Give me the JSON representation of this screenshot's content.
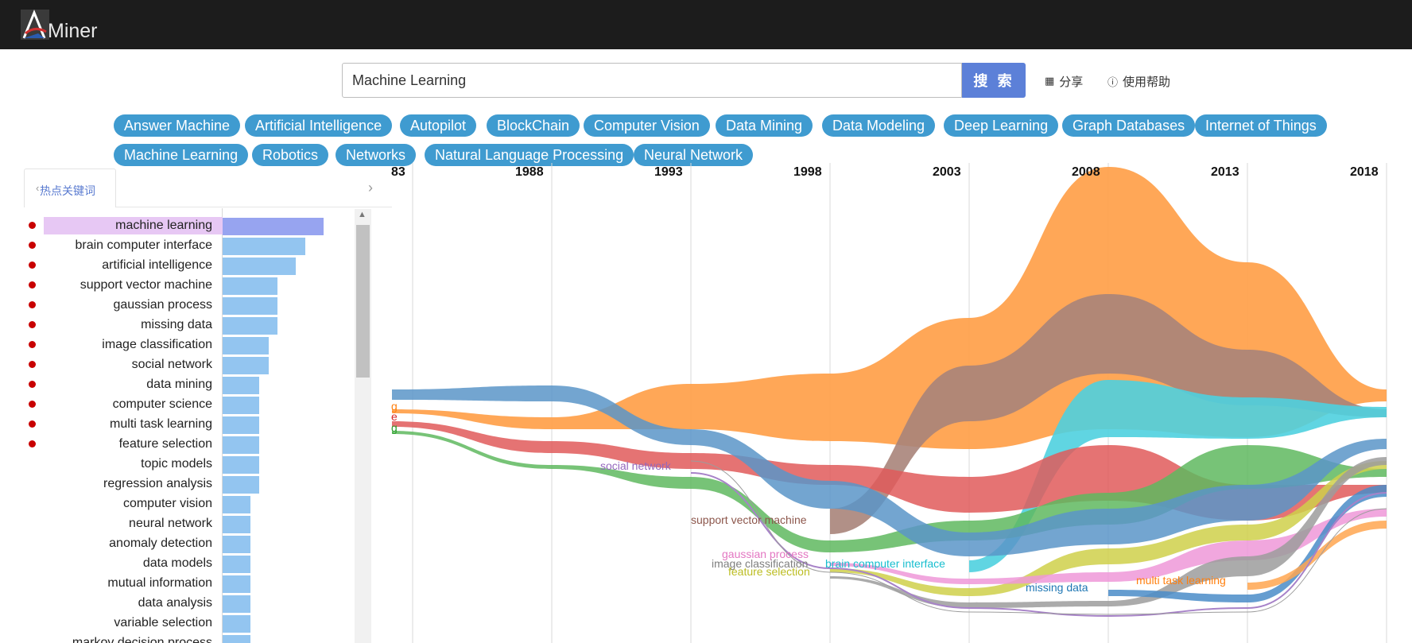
{
  "app": {
    "logo_text": "Miner",
    "logo_mark": "A"
  },
  "search": {
    "value": "Machine Learning",
    "button_label": "搜 索"
  },
  "header_links": {
    "share": "分享",
    "help": "使用帮助"
  },
  "tags": [
    "Answer Machine",
    "Artificial Intelligence",
    "Autopilot",
    "BlockChain",
    "Computer Vision",
    "Data Mining",
    "Data Modeling",
    "Deep Learning",
    "Graph Databases",
    "Internet of Things",
    "Machine Learning",
    "Robotics",
    "Networks",
    "Natural Language Processing",
    "Neural Network"
  ],
  "panel": {
    "tab_label": "热点关键词"
  },
  "keywords": [
    {
      "label": "machine learning",
      "value": 11,
      "hot": true,
      "selected": true
    },
    {
      "label": "brain computer interface",
      "value": 9,
      "hot": true
    },
    {
      "label": "artificial intelligence",
      "value": 8,
      "hot": true
    },
    {
      "label": "support vector machine",
      "value": 6,
      "hot": true
    },
    {
      "label": "gaussian process",
      "value": 6,
      "hot": true
    },
    {
      "label": "missing data",
      "value": 6,
      "hot": true
    },
    {
      "label": "image classification",
      "value": 5,
      "hot": true
    },
    {
      "label": "social network",
      "value": 5,
      "hot": true
    },
    {
      "label": "data mining",
      "value": 4,
      "hot": true
    },
    {
      "label": "computer science",
      "value": 4,
      "hot": true
    },
    {
      "label": "multi task learning",
      "value": 4,
      "hot": true
    },
    {
      "label": "feature selection",
      "value": 4,
      "hot": true
    },
    {
      "label": "topic models",
      "value": 4
    },
    {
      "label": "regression analysis",
      "value": 4
    },
    {
      "label": "computer vision",
      "value": 3
    },
    {
      "label": "neural network",
      "value": 3
    },
    {
      "label": "anomaly detection",
      "value": 3
    },
    {
      "label": "data models",
      "value": 3
    },
    {
      "label": "mutual information",
      "value": 3
    },
    {
      "label": "data analysis",
      "value": 3
    },
    {
      "label": "variable selection",
      "value": 3
    },
    {
      "label": "markov decision process",
      "value": 3
    }
  ],
  "stream": {
    "years": [
      "83",
      "1988",
      "1993",
      "1998",
      "2003",
      "2008",
      "2013",
      "2018"
    ],
    "left_labels": [
      {
        "text": "g",
        "color": "#ff7f0e"
      },
      {
        "text": "e",
        "color": "#d62728"
      },
      {
        "text": "g",
        "color": "#2ca02c"
      }
    ],
    "labels": [
      {
        "text": "social network",
        "color": "#9467bd"
      },
      {
        "text": "support vector machine",
        "color": "#8c564b"
      },
      {
        "text": "gaussian process",
        "color": "#e377c2"
      },
      {
        "text": "image classification",
        "color": "#7f7f7f"
      },
      {
        "text": "feature selection",
        "color": "#bcbd22"
      },
      {
        "text": "brain computer interface",
        "color": "#17becf"
      },
      {
        "text": "missing data",
        "color": "#1f77b4"
      },
      {
        "text": "multi task learning",
        "color": "#ff7f0e"
      }
    ],
    "colors": {
      "machine_learning": "#ff9d45",
      "support_vector_machine": "#a8847a",
      "brain_computer_interface": "#4fd0df",
      "artificial_intelligence": "#e05b5b",
      "data_mining": "#5fb85f",
      "social_network": "#5b95c8",
      "feature_selection": "#cfd04a",
      "gaussian_process": "#ef98d8",
      "image_classification": "#9c9c9c",
      "missing_data": "#4a8cc8",
      "multi_task_learning": "#ffa650",
      "purple": "#a782c8"
    }
  }
}
